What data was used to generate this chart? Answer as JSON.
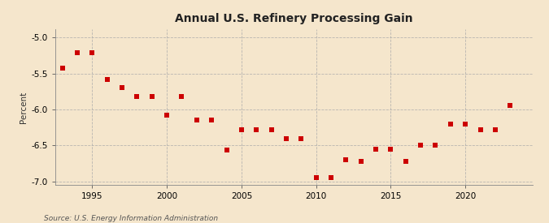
{
  "title": "Annual U.S. Refinery Processing Gain",
  "ylabel": "Percent",
  "source_text": "Source: U.S. Energy Information Administration",
  "background_color": "#f5e6cc",
  "plot_background_color": "#f5e6cc",
  "grid_color": "#aaaaaa",
  "marker_color": "#cc0000",
  "marker_size": 4,
  "xlim": [
    1992.5,
    2024.5
  ],
  "ylim": [
    -7.05,
    -4.88
  ],
  "yticks": [
    -7.0,
    -6.5,
    -6.0,
    -5.5,
    -5.0
  ],
  "xticks": [
    1995,
    2000,
    2005,
    2010,
    2015,
    2020
  ],
  "years": [
    1993,
    1994,
    1995,
    1996,
    1997,
    1998,
    1999,
    2000,
    2001,
    2002,
    2003,
    2004,
    2005,
    2006,
    2007,
    2008,
    2009,
    2010,
    2011,
    2012,
    2013,
    2014,
    2015,
    2016,
    2017,
    2018,
    2019,
    2020,
    2021,
    2022,
    2023
  ],
  "values": [
    -5.42,
    -5.21,
    -5.21,
    -5.58,
    -5.7,
    -5.82,
    -5.82,
    -6.08,
    -5.82,
    -6.15,
    -6.15,
    -6.56,
    -6.28,
    -6.28,
    -6.28,
    -6.4,
    -6.4,
    -6.95,
    -6.95,
    -6.7,
    -6.72,
    -6.55,
    -6.55,
    -6.72,
    -6.5,
    -6.5,
    -6.2,
    -6.2,
    -6.28,
    -6.28,
    -5.94
  ]
}
